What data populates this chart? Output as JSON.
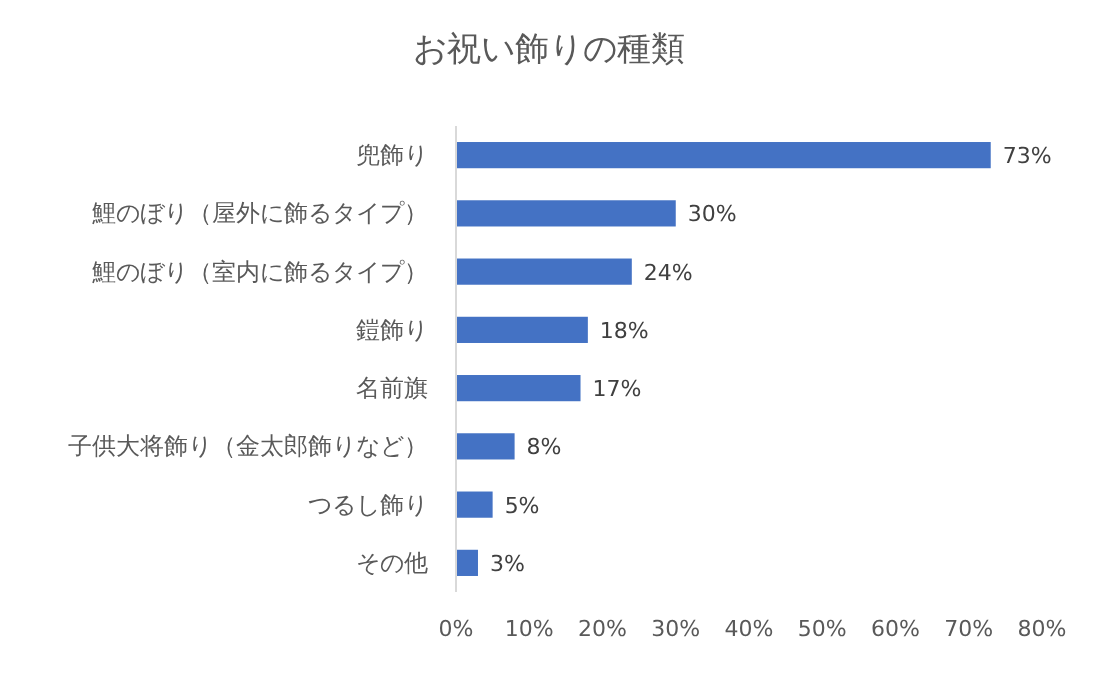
{
  "chart_data": {
    "type": "bar",
    "orientation": "horizontal",
    "title": "お祝い飾りの種類",
    "categories": [
      "兜飾り",
      "鯉のぼり（屋外に飾るタイプ）",
      "鯉のぼり（室内に飾るタイプ）",
      "鎧飾り",
      "名前旗",
      "子供大将飾り（金太郎飾りなど）",
      "つるし飾り",
      "その他"
    ],
    "values": [
      73,
      30,
      24,
      18,
      17,
      8,
      5,
      3
    ],
    "value_labels": [
      "73%",
      "30%",
      "24%",
      "18%",
      "17%",
      "8%",
      "5%",
      "3%"
    ],
    "color": "#4472c4",
    "xlim": [
      0,
      80
    ],
    "xticks": [
      {
        "value": 0,
        "label": "0%"
      },
      {
        "value": 10,
        "label": "10%"
      },
      {
        "value": 20,
        "label": "20%"
      },
      {
        "value": 30,
        "label": "30%"
      },
      {
        "value": 40,
        "label": "40%"
      },
      {
        "value": 50,
        "label": "50%"
      },
      {
        "value": 60,
        "label": "60%"
      },
      {
        "value": 70,
        "label": "70%"
      },
      {
        "value": 80,
        "label": "80%"
      }
    ],
    "grid": false
  }
}
